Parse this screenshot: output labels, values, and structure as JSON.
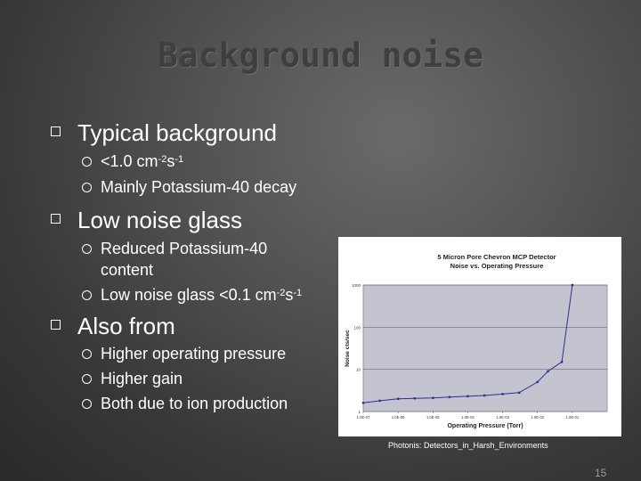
{
  "title": "Background noise",
  "bullets": [
    {
      "text": "Typical background",
      "sub": [
        {
          "parts": [
            "<1.0 cm",
            "-2",
            "s",
            "-1"
          ]
        },
        {
          "parts": [
            "Mainly Potassium-40 decay"
          ]
        }
      ]
    },
    {
      "text": "Low noise glass",
      "sub": [
        {
          "parts": [
            "Reduced Potassium-40"
          ]
        },
        {
          "parts": [
            "content"
          ]
        },
        {
          "parts": [
            "Low noise glass <0.1 cm",
            "-2",
            "s",
            "-1"
          ]
        }
      ]
    },
    {
      "text": "Also from",
      "sub": [
        {
          "parts": [
            "Higher operating pressure"
          ]
        },
        {
          "parts": [
            "Higher gain"
          ]
        },
        {
          "parts": [
            "Both due to ion production"
          ]
        }
      ]
    }
  ],
  "chart_data": {
    "type": "line",
    "title": "5 Micron Pore Chevron MCP Detector",
    "subtitle": "Noise vs. Operating Pressure",
    "xlabel": "Operating Pressure (Torr)",
    "ylabel": "Noise cts/sec",
    "x_scale": "log",
    "y_scale": "log",
    "xlim": [
      1e-07,
      1
    ],
    "ylim": [
      1,
      1000
    ],
    "x_ticks": [
      "1.0E-07",
      "1.0E-06",
      "1.0E-05",
      "1.0E-04",
      "1.0E-03",
      "1.0E-02",
      "1.0E-01"
    ],
    "y_ticks": [
      "1000",
      "100",
      "10",
      "1"
    ],
    "grid": true,
    "legend": "none",
    "line_color": "#2f2f8f",
    "series": [
      {
        "x": [
          1e-07,
          3e-07,
          1e-06,
          3e-06,
          1e-05,
          3e-05,
          0.0001,
          0.0003,
          0.001,
          0.003,
          0.01,
          0.02,
          0.05,
          0.1
        ],
        "y": [
          1.6,
          1.8,
          2.0,
          2.05,
          2.1,
          2.2,
          2.3,
          2.4,
          2.6,
          2.8,
          5.0,
          9.0,
          15.0,
          1000.0
        ]
      }
    ]
  },
  "caption": "Photonis: Detectors_in_Harsh_Environments",
  "page_number": "15"
}
